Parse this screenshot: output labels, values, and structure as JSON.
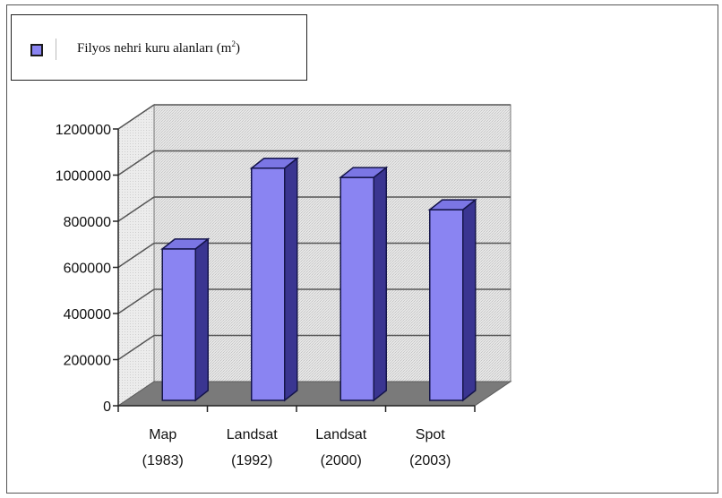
{
  "chart_data": {
    "type": "bar",
    "title": "",
    "xlabel": "",
    "ylabel": "",
    "categories": [
      [
        "Map",
        "(1983)"
      ],
      [
        "Landsat",
        "(1992)"
      ],
      [
        "Landsat",
        "(2000)"
      ],
      [
        "Spot",
        "(2003)"
      ]
    ],
    "series": [
      {
        "name": "Filyos nehri kuru alanları (m²)",
        "values": [
          680000,
          1030000,
          990000,
          850000
        ],
        "color": "#8a84f2"
      }
    ],
    "ylim": [
      0,
      1200000
    ],
    "yticks": [
      "0",
      "200000",
      "400000",
      "600000",
      "800000",
      "1000000",
      "1200000"
    ],
    "grid": true,
    "three_d": true,
    "legend_position": "top-left"
  },
  "legend": {
    "label_main": "Filyos nehri kuru alanları (m",
    "label_sup": "2",
    "label_end": ")"
  }
}
